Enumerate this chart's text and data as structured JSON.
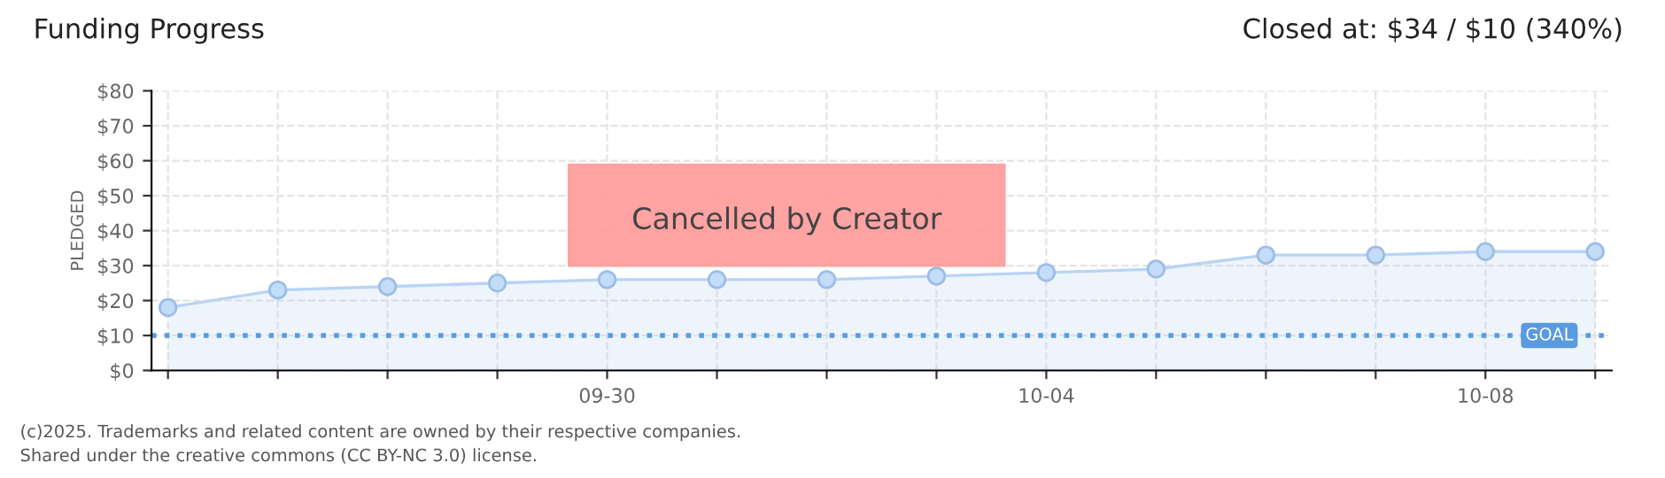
{
  "chart_data": {
    "type": "area",
    "title": "Funding Progress",
    "subtitle": "Closed at: $34 / $10 (340%)",
    "ylabel": "PLEDGED",
    "categories": [
      null,
      null,
      null,
      null,
      "09-30",
      null,
      null,
      null,
      "10-04",
      null,
      null,
      null,
      "10-08",
      null
    ],
    "series": [
      {
        "color": "#b8d4f4",
        "values": [
          18,
          23,
          24,
          25,
          26,
          26,
          26,
          27,
          28,
          29,
          33,
          33,
          34,
          34
        ]
      }
    ],
    "ylim": [
      0,
      80
    ],
    "yticks": [
      {
        "value": 0,
        "label": "$0"
      },
      {
        "value": 10,
        "label": "$10"
      },
      {
        "value": 20,
        "label": "$20"
      },
      {
        "value": 30,
        "label": "$30"
      },
      {
        "value": 40,
        "label": "$40"
      },
      {
        "value": 50,
        "label": "$50"
      },
      {
        "value": 60,
        "label": "$60"
      },
      {
        "value": 70,
        "label": "$70"
      },
      {
        "value": 80,
        "label": "$80"
      }
    ],
    "ref_lines": [
      {
        "axis": "y",
        "value": 10,
        "label": "GOAL",
        "color": "#5a9ade",
        "line_style": "dotted"
      }
    ],
    "annotations": [
      "Cancelled by Creator",
      "(c)2025. Trademarks and related content are owned by their respective companies.",
      "Shared under the creative commons (CC BY-NC 3.0) license."
    ],
    "grid": true,
    "marker": "circle",
    "legend": false
  }
}
